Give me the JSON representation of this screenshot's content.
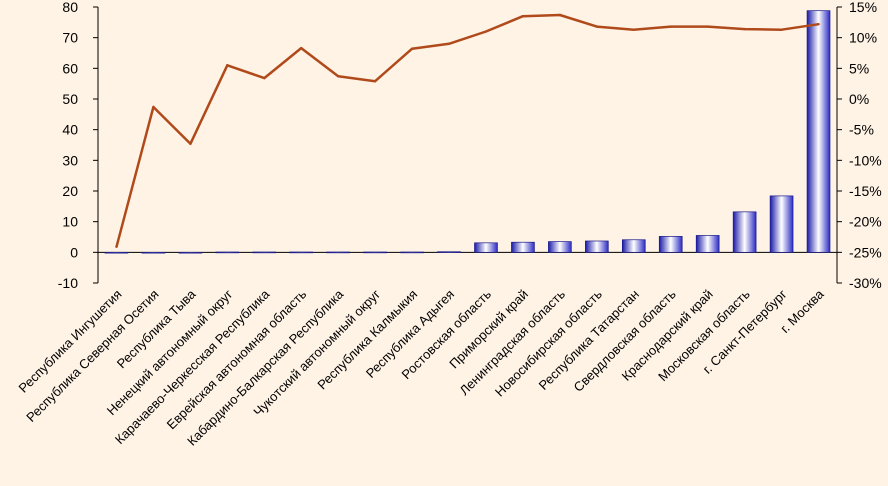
{
  "chart_data": {
    "type": "bar",
    "title": "",
    "xlabel": "",
    "ylabel": "",
    "categories": [
      "Республика Ингушетия",
      "Республика Северная Осетия",
      "Республика Тыва",
      "Ненецкий автономный округ",
      "Карачаево-Черкесская Республика",
      "Еврейская автономная область",
      "Кабардино-Балкарская Республика",
      "Чукотский автономный округ",
      "Республика Калмыкия",
      "Республика Адыгея",
      "Ростовская область",
      "Приморский край",
      "Ленинградская область",
      "Новосибирская область",
      "Республика Татарстан",
      "Свердловская область",
      "Краснодарский край",
      "Московская область",
      "г. Санкт-Петербург",
      "г. Москва"
    ],
    "series": [
      {
        "axis": "left",
        "type": "bar",
        "color": "#5050e0",
        "values": [
          0,
          0,
          0,
          0.1,
          0.1,
          0.1,
          0.1,
          0.1,
          0.1,
          0.2,
          3.1,
          3.3,
          3.5,
          3.7,
          4.1,
          5.2,
          5.5,
          13.2,
          18.4,
          78.8
        ]
      },
      {
        "axis": "right",
        "type": "line",
        "color": "#b04a1a",
        "values": [
          -24.1,
          -1.3,
          -7.3,
          5.5,
          3.4,
          8.3,
          3.7,
          2.9,
          8.2,
          9.0,
          11.0,
          13.5,
          13.7,
          11.8,
          11.3,
          11.8,
          11.8,
          11.4,
          11.3,
          12.2
        ]
      }
    ],
    "left_axis": {
      "ylim": [
        -10,
        80
      ],
      "ticks": [
        "80",
        "70",
        "60",
        "50",
        "40",
        "30",
        "20",
        "10",
        "0",
        "-10"
      ]
    },
    "right_axis": {
      "ylim": [
        -30,
        15
      ],
      "ticks": [
        "15%",
        "10%",
        "5%",
        "0%",
        "-5%",
        "-10%",
        "-15%",
        "-20%",
        "-25%",
        "-30%"
      ]
    },
    "grid": false,
    "legend": "none"
  }
}
